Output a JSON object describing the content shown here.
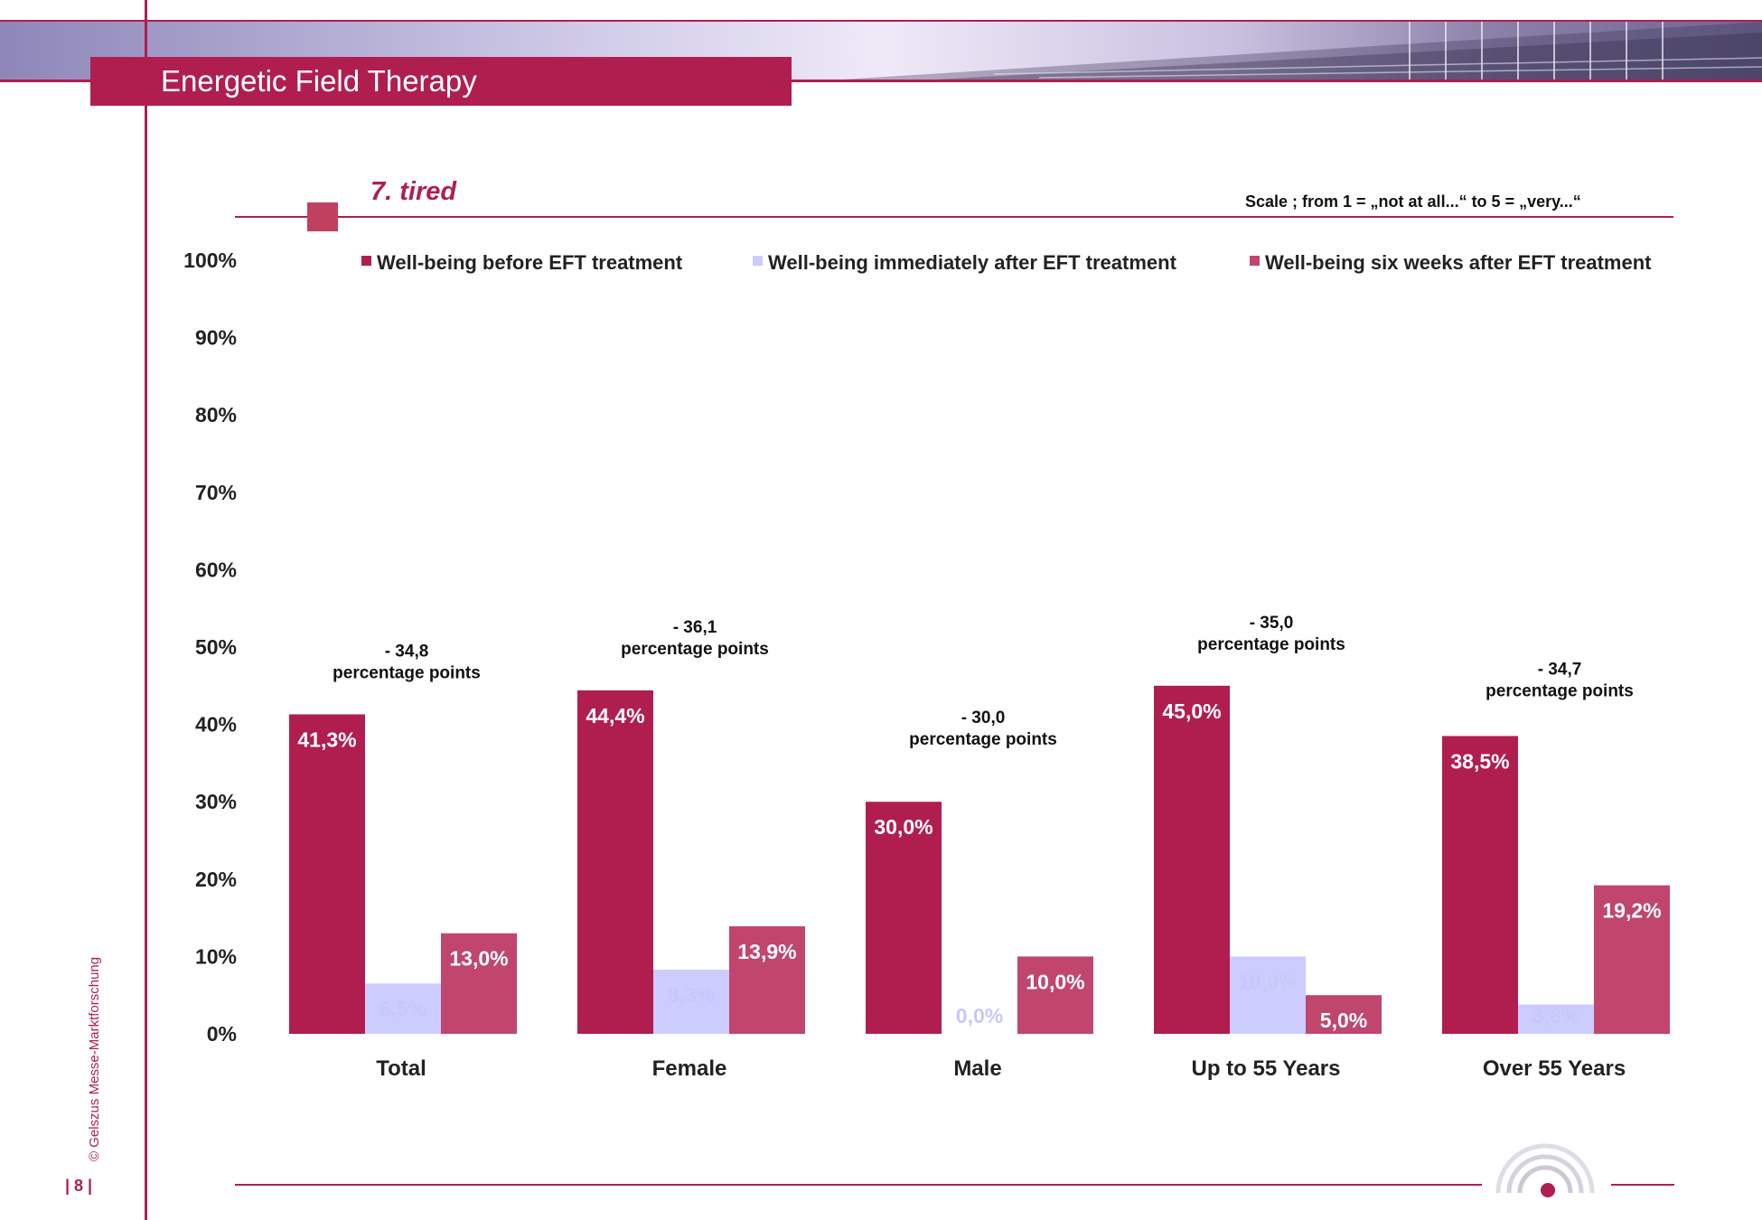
{
  "header": {
    "title": "Energetic Field Therapy"
  },
  "slide": {
    "subtitle": "7. tired",
    "scale_note": "Scale ; from 1 = „not at all...“  to 5 = „very...“",
    "copyright": "© Gelszus Messe-Marktforschung",
    "page": "| 8 |"
  },
  "colors": {
    "accent": "#b01e50",
    "before": "#b01e50",
    "immediately": "#ccccff",
    "six_weeks": "#c0466e"
  },
  "chart_data": {
    "type": "bar",
    "categories": [
      "Total",
      "Female",
      "Male",
      "Up to 55 Years",
      "Over 55 Years"
    ],
    "series": [
      {
        "name": "Well-being before EFT treatment",
        "values": [
          41.3,
          44.4,
          30.0,
          45.0,
          38.5
        ],
        "labels": [
          "41,3%",
          "44,4%",
          "30,0%",
          "45,0%",
          "38,5%"
        ]
      },
      {
        "name": "Well-being immediately after EFT treatment",
        "values": [
          6.5,
          8.3,
          0.0,
          10.0,
          3.8
        ],
        "labels": [
          "6,5%",
          "8,3%",
          "0,0%",
          "10,0%",
          "3,8%"
        ]
      },
      {
        "name": "Well-being six weeks after EFT treatment",
        "values": [
          13.0,
          13.9,
          10.0,
          5.0,
          19.2
        ],
        "labels": [
          "13,0%",
          "13,9%",
          "10,0%",
          "5,0%",
          "19,2%"
        ]
      }
    ],
    "annotations": [
      {
        "category": "Total",
        "line1": "- 34,8",
        "line2": "percentage points"
      },
      {
        "category": "Female",
        "line1": "- 36,1",
        "line2": "percentage points"
      },
      {
        "category": "Male",
        "line1": "- 30,0",
        "line2": "percentage points"
      },
      {
        "category": "Up to 55 Years",
        "line1": "- 35,0",
        "line2": "percentage points"
      },
      {
        "category": "Over 55 Years",
        "line1": "- 34,7",
        "line2": "percentage points"
      }
    ],
    "yticks": [
      "0%",
      "10%",
      "20%",
      "30%",
      "40%",
      "50%",
      "60%",
      "70%",
      "80%",
      "90%",
      "100%"
    ],
    "ylim": [
      0,
      100
    ],
    "grid": false,
    "legend": "top"
  }
}
